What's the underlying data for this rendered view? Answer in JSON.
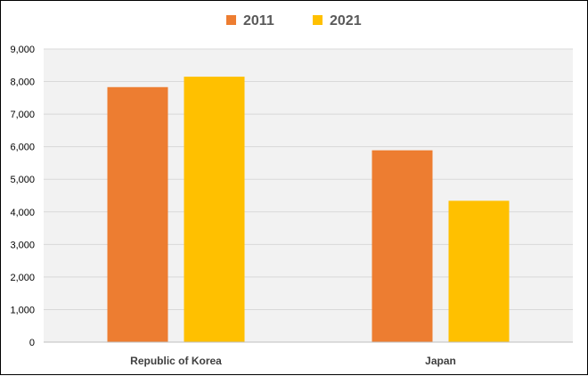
{
  "chart_data": {
    "type": "bar",
    "title": "",
    "xlabel": "",
    "ylabel": "",
    "categories": [
      "Republic of Korea",
      "Japan"
    ],
    "series": [
      {
        "name": "2011",
        "values": [
          7830,
          5890
        ],
        "color": "#ED7D31"
      },
      {
        "name": "2021",
        "values": [
          8150,
          4340
        ],
        "color": "#FFC000"
      }
    ],
    "ylim": [
      0,
      9000
    ],
    "yticks": [
      0,
      1000,
      2000,
      3000,
      4000,
      5000,
      6000,
      7000,
      8000,
      9000
    ],
    "ytick_labels": [
      "0",
      "1,000",
      "2,000",
      "3,000",
      "4,000",
      "5,000",
      "6,000",
      "7,000",
      "8,000",
      "9,000"
    ],
    "grid": true,
    "legend_position": "top-center",
    "plot_background": "#F2F2F2",
    "gridline_color": "#D9D9D9"
  }
}
